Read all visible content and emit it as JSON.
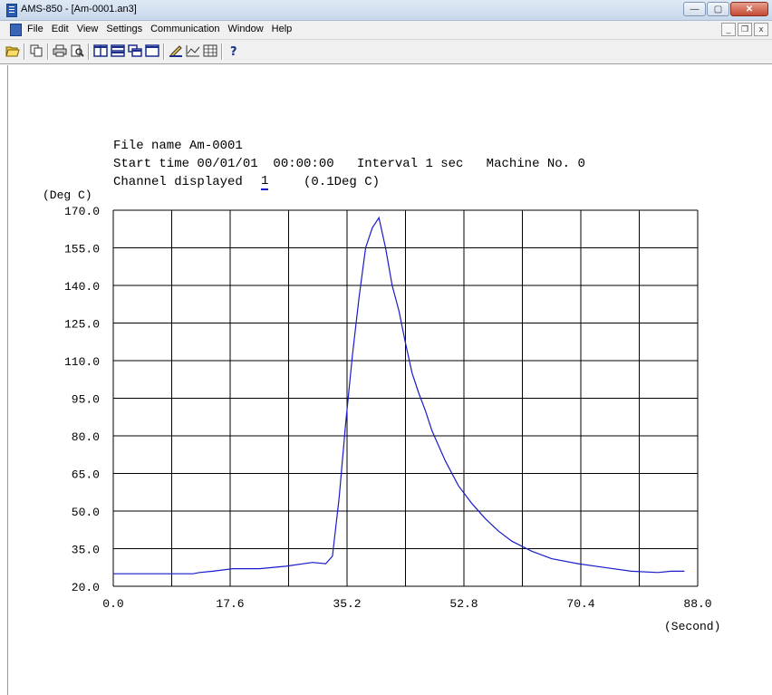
{
  "window": {
    "title": "AMS-850 - [Am-0001.an3]",
    "min": "—",
    "max": "▢",
    "close": "✕"
  },
  "menu": {
    "items": [
      "File",
      "Edit",
      "View",
      "Settings",
      "Communication",
      "Window",
      "Help"
    ],
    "mdi_min": "_",
    "mdi_restore": "❐",
    "mdi_close": "x"
  },
  "toolbar": {
    "icons": [
      "open-folder-icon",
      "copy-icon",
      "print-icon",
      "print-preview-icon",
      "tile-vertical-icon",
      "tile-horizontal-icon",
      "cascade-icon",
      "single-window-icon",
      "pen-icon",
      "graph-icon",
      "table-icon",
      "help-icon"
    ]
  },
  "header": {
    "file_line": "File name Am-0001",
    "start_line": "Start time 00/01/01  00:00:00   Interval 1 sec   Machine No. 0",
    "channel_label": "Channel displayed",
    "channel_value": "1",
    "channel_unit": "(0.1Deg C)"
  },
  "chart_data": {
    "type": "line",
    "ylabel": "(Deg C)",
    "xlabel": "(Second)",
    "ylim": [
      20.0,
      170.0
    ],
    "xlim": [
      0.0,
      88.0
    ],
    "yticks": [
      "170.0",
      "155.0",
      "140.0",
      "125.0",
      "110.0",
      "95.0",
      "80.0",
      "65.0",
      "50.0",
      "35.0",
      "20.0"
    ],
    "xticks": [
      "0.0",
      "17.6",
      "35.2",
      "52.8",
      "70.4",
      "88.0"
    ],
    "grid": true,
    "color": "#1a1acc",
    "series": [
      {
        "x": [
          0,
          4,
          8,
          12,
          13,
          15,
          18,
          22,
          26,
          30,
          32,
          33,
          34,
          35,
          36,
          37,
          38,
          39,
          40,
          41,
          42,
          43,
          44,
          45,
          46,
          47,
          48,
          50,
          52,
          54,
          56,
          58,
          60,
          63,
          66,
          70,
          74,
          78,
          82,
          84,
          86
        ],
        "y": [
          25,
          25,
          25,
          25,
          25.5,
          26,
          27,
          27,
          28,
          29.5,
          29,
          32,
          55,
          85,
          112,
          135,
          155,
          163,
          167,
          155,
          140,
          130,
          117,
          105,
          97,
          90,
          82,
          70,
          60,
          53,
          47,
          42,
          38,
          34,
          31,
          29,
          27.5,
          26,
          25.5,
          26,
          26
        ]
      }
    ]
  }
}
